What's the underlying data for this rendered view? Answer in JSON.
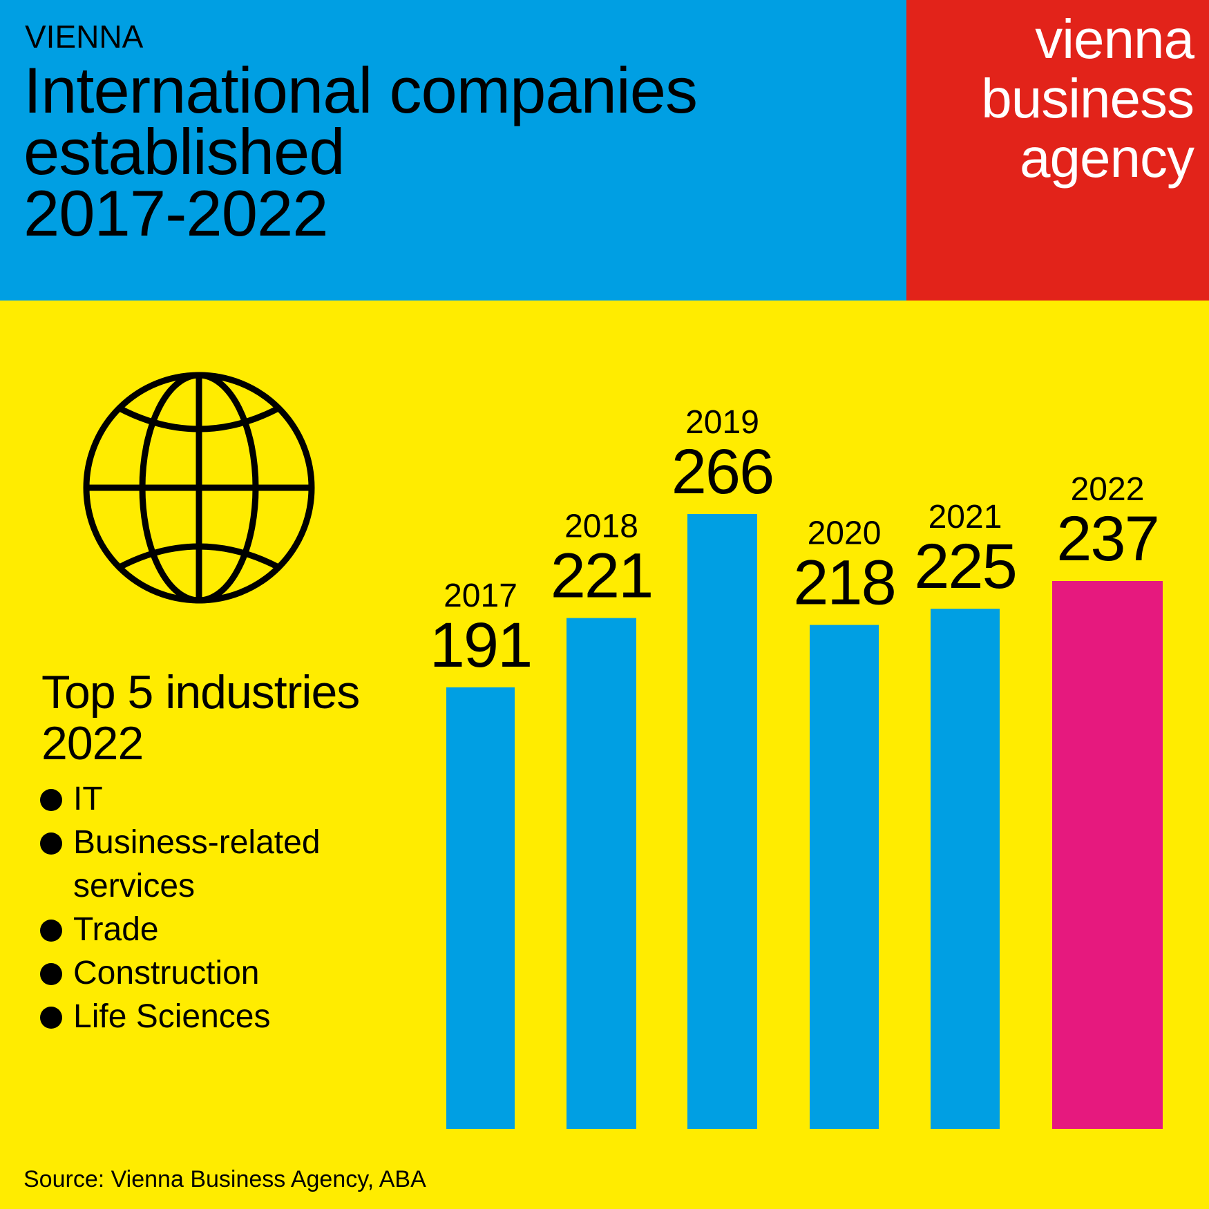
{
  "header": {
    "kicker": "VIENNA",
    "title_lines": [
      "International companies",
      "established",
      "2017-2022"
    ]
  },
  "logo": {
    "lines": [
      "vienna",
      "business",
      "agency"
    ]
  },
  "icon": "globe-icon",
  "industries": {
    "title_lines": [
      "Top 5 industries",
      "2022"
    ],
    "items": [
      "IT",
      "Business-related services",
      "Trade",
      "Construction",
      "Life Sciences"
    ]
  },
  "source": "Source: Vienna Business Agency, ABA",
  "colors": {
    "header": "#009FE3",
    "logo": "#E2231A",
    "background": "#FFEC00",
    "bar": "#009FE3",
    "highlight": "#E6197E"
  },
  "chart_data": {
    "type": "bar",
    "title": "International companies established 2017-2022",
    "categories": [
      "2017",
      "2018",
      "2019",
      "2020",
      "2021",
      "2022"
    ],
    "values": [
      191,
      221,
      266,
      218,
      225,
      237
    ],
    "highlight": "2022",
    "xlabel": "",
    "ylabel": "",
    "ylim": [
      0,
      266
    ],
    "grid": false
  }
}
